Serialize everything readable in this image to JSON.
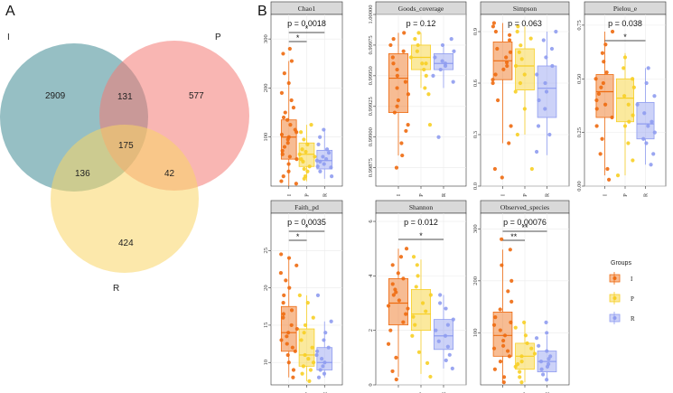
{
  "panel_a_letter": "A",
  "panel_b_letter": "B",
  "colors": {
    "I": "#ee6a10",
    "P": "#f7cf25",
    "R": "#8f9cf0",
    "venn_I": "#3f8b94",
    "venn_P": "#f47a74",
    "venn_R": "#f9d566",
    "strip_fill": "#d9d9d9",
    "panel_bg": "#ffffff",
    "grid": "#ebebeb"
  },
  "venn": {
    "sets": [
      {
        "name": "I",
        "label": "I"
      },
      {
        "name": "P",
        "label": "P"
      },
      {
        "name": "R",
        "label": "R"
      }
    ],
    "regions": {
      "I_only": "2909",
      "P_only": "577",
      "R_only": "424",
      "I_P": "131",
      "I_R": "136",
      "P_R": "42",
      "I_P_R": "175"
    }
  },
  "legend": {
    "title": "Groups",
    "items": [
      "I",
      "P",
      "R"
    ]
  },
  "chart_data": [
    {
      "type": "box",
      "title": "Chao1",
      "annotation": "p = 0.0018",
      "categories": [
        "I",
        "P",
        "R"
      ],
      "ylim": [
        0,
        350
      ],
      "yticks": [
        "100",
        "200",
        "300"
      ],
      "ytick_values": [
        100,
        200,
        300
      ],
      "boxes": [
        {
          "group": "I",
          "q1": 55,
          "median": 100,
          "q3": 135,
          "whisker_low": 0,
          "whisker_high": 255
        },
        {
          "group": "P",
          "q1": 40,
          "median": 65,
          "q3": 88,
          "whisker_low": 10,
          "whisker_high": 125
        },
        {
          "group": "R",
          "q1": 35,
          "median": 52,
          "q3": 73,
          "whisker_low": 15,
          "whisker_high": 115
        }
      ],
      "significance": [
        {
          "pair": [
            "I",
            "P"
          ],
          "label": "*"
        },
        {
          "pair": [
            "I",
            "R"
          ],
          "label": "*"
        }
      ],
      "points": {
        "I": [
          45,
          60,
          72,
          80,
          95,
          100,
          105,
          115,
          125,
          135,
          150,
          160,
          175,
          190,
          210,
          230,
          255,
          270,
          280,
          30,
          20,
          10,
          5,
          55,
          65,
          88,
          110,
          140
        ],
        "P": [
          20,
          30,
          40,
          50,
          55,
          60,
          70,
          75,
          85,
          95,
          110,
          125,
          15,
          35,
          65
        ],
        "R": [
          20,
          30,
          38,
          45,
          50,
          55,
          60,
          68,
          75,
          85,
          100,
          115,
          40,
          52
        ]
      }
    },
    {
      "type": "box",
      "title": "Goods_coverage",
      "annotation": "p = 0.12",
      "categories": [
        "I",
        "P",
        "R"
      ],
      "ylim": [
        0.9986,
        1.0
      ],
      "yticks": [
        "0.99875",
        "0.99900",
        "0.99925",
        "0.99950",
        "0.99975",
        "1.00000"
      ],
      "ytick_values": [
        0.99875,
        0.999,
        0.99925,
        0.9995,
        0.99975,
        1.0
      ],
      "boxes": [
        {
          "group": "I",
          "q1": 0.9992,
          "median": 0.99948,
          "q3": 0.99968,
          "whisker_low": 0.99885,
          "whisker_high": 0.99985
        },
        {
          "group": "P",
          "q1": 0.99955,
          "median": 0.99965,
          "q3": 0.99975,
          "whisker_low": 0.9994,
          "whisker_high": 0.99985
        },
        {
          "group": "R",
          "q1": 0.99955,
          "median": 0.9996,
          "q3": 0.99968,
          "whisker_low": 0.9994,
          "whisker_high": 0.99975
        }
      ],
      "significance": [],
      "points": {
        "I": [
          0.99875,
          0.99885,
          0.99895,
          0.9991,
          0.9992,
          0.99925,
          0.9993,
          0.9994,
          0.99945,
          0.9995,
          0.99955,
          0.9996,
          0.99965,
          0.9997,
          0.99975,
          0.9998,
          0.99985,
          0.99905,
          0.99935
        ],
        "P": [
          0.9991,
          0.99935,
          0.9995,
          0.99955,
          0.9996,
          0.99965,
          0.9997,
          0.99975,
          0.9998,
          0.99985,
          0.9994,
          0.9996
        ],
        "R": [
          0.999,
          0.99945,
          0.9995,
          0.99955,
          0.9996,
          0.99962,
          0.99965,
          0.9997,
          0.99975,
          0.9998,
          0.99958
        ]
      }
    },
    {
      "type": "box",
      "title": "Simpson",
      "annotation": "p = 0.063",
      "categories": [
        "I",
        "P",
        "R"
      ],
      "ylim": [
        0,
        1.0
      ],
      "yticks": [
        "0.0",
        "0.3",
        "0.6",
        "0.9"
      ],
      "ytick_values": [
        0.0,
        0.3,
        0.6,
        0.9
      ],
      "boxes": [
        {
          "group": "I",
          "q1": 0.62,
          "median": 0.73,
          "q3": 0.84,
          "whisker_low": 0.25,
          "whisker_high": 0.95
        },
        {
          "group": "P",
          "q1": 0.56,
          "median": 0.7,
          "q3": 0.8,
          "whisker_low": 0.3,
          "whisker_high": 0.93
        },
        {
          "group": "R",
          "q1": 0.4,
          "median": 0.57,
          "q3": 0.7,
          "whisker_low": 0.18,
          "whisker_high": 0.9
        }
      ],
      "significance": [],
      "points": {
        "I": [
          0.05,
          0.1,
          0.25,
          0.35,
          0.5,
          0.6,
          0.65,
          0.7,
          0.72,
          0.75,
          0.78,
          0.8,
          0.85,
          0.9,
          0.93,
          0.95,
          0.62,
          0.68,
          0.88
        ],
        "P": [
          0.1,
          0.3,
          0.45,
          0.55,
          0.6,
          0.65,
          0.7,
          0.74,
          0.78,
          0.82,
          0.86,
          0.9,
          0.93
        ],
        "R": [
          0.2,
          0.3,
          0.35,
          0.45,
          0.5,
          0.55,
          0.6,
          0.65,
          0.7,
          0.75,
          0.8,
          0.85,
          0.9
        ]
      }
    },
    {
      "type": "box",
      "title": "Pielou_e",
      "annotation": "p = 0.038",
      "categories": [
        "I",
        "P",
        "R"
      ],
      "ylim": [
        0,
        0.8
      ],
      "yticks": [
        "0.00",
        "0.25",
        "0.50",
        "0.75"
      ],
      "ytick_values": [
        0.0,
        0.25,
        0.5,
        0.75
      ],
      "boxes": [
        {
          "group": "I",
          "q1": 0.32,
          "median": 0.44,
          "q3": 0.52,
          "whisker_low": 0.05,
          "whisker_high": 0.72
        },
        {
          "group": "P",
          "q1": 0.3,
          "median": 0.41,
          "q3": 0.5,
          "whisker_low": 0.05,
          "whisker_high": 0.62
        },
        {
          "group": "R",
          "q1": 0.22,
          "median": 0.29,
          "q3": 0.39,
          "whisker_low": 0.1,
          "whisker_high": 0.55
        }
      ],
      "significance": [
        {
          "pair": [
            "I",
            "R"
          ],
          "label": "*"
        }
      ],
      "points": {
        "I": [
          0.03,
          0.08,
          0.15,
          0.22,
          0.28,
          0.32,
          0.36,
          0.4,
          0.43,
          0.46,
          0.5,
          0.53,
          0.58,
          0.62,
          0.66,
          0.72,
          0.38,
          0.48
        ],
        "P": [
          0.05,
          0.12,
          0.2,
          0.28,
          0.33,
          0.38,
          0.42,
          0.46,
          0.5,
          0.55,
          0.6,
          0.3
        ],
        "R": [
          0.1,
          0.15,
          0.2,
          0.25,
          0.28,
          0.3,
          0.34,
          0.38,
          0.42,
          0.48,
          0.55,
          0.22
        ]
      }
    },
    {
      "type": "box",
      "title": "Faith_pd",
      "annotation": "p = 0.0035",
      "categories": [
        "I",
        "P",
        "R"
      ],
      "ylim": [
        7,
        30
      ],
      "yticks": [
        "10",
        "15",
        "20",
        "25"
      ],
      "ytick_values": [
        10,
        15,
        20,
        25
      ],
      "boxes": [
        {
          "group": "I",
          "q1": 11.5,
          "median": 14,
          "q3": 17.5,
          "whisker_low": 8,
          "whisker_high": 24
        },
        {
          "group": "P",
          "q1": 9.5,
          "median": 11,
          "q3": 14.5,
          "whisker_low": 7.5,
          "whisker_high": 19
        },
        {
          "group": "R",
          "q1": 9,
          "median": 10,
          "q3": 12,
          "whisker_low": 8,
          "whisker_high": 15.5
        }
      ],
      "significance": [
        {
          "pair": [
            "I",
            "P"
          ],
          "label": "*"
        },
        {
          "pair": [
            "I",
            "R"
          ],
          "label": "*"
        }
      ],
      "points": {
        "I": [
          8,
          9,
          10,
          11,
          11.5,
          12,
          13,
          13.5,
          14,
          14.5,
          15,
          16,
          17,
          18,
          19,
          20,
          21,
          22,
          23,
          24,
          24.5,
          12.5,
          16.5
        ],
        "P": [
          7.5,
          8.5,
          9,
          9.5,
          10,
          10.5,
          11,
          12,
          13,
          14,
          15,
          16,
          18,
          19
        ],
        "R": [
          8,
          8.5,
          9,
          9.5,
          10,
          10.5,
          11,
          11.5,
          12,
          13,
          14,
          15.5,
          19
        ]
      }
    },
    {
      "type": "box",
      "title": "Shannon",
      "annotation": "p = 0.012",
      "categories": [
        "I",
        "P",
        "R"
      ],
      "ylim": [
        0,
        6.3
      ],
      "yticks": [
        "0",
        "2",
        "4",
        "6"
      ],
      "ytick_values": [
        0,
        2,
        4,
        6
      ],
      "boxes": [
        {
          "group": "I",
          "q1": 2.2,
          "median": 3.0,
          "q3": 3.9,
          "whisker_low": 0.3,
          "whisker_high": 5.0
        },
        {
          "group": "P",
          "q1": 2.0,
          "median": 2.6,
          "q3": 3.5,
          "whisker_low": 0.4,
          "whisker_high": 4.6
        },
        {
          "group": "R",
          "q1": 1.3,
          "median": 1.8,
          "q3": 2.4,
          "whisker_low": 0.6,
          "whisker_high": 3.3
        }
      ],
      "significance": [
        {
          "pair": [
            "I",
            "R"
          ],
          "label": "*"
        }
      ],
      "points": {
        "I": [
          0.2,
          0.5,
          1.0,
          1.5,
          2.0,
          2.3,
          2.6,
          2.9,
          3.1,
          3.3,
          3.5,
          3.7,
          3.9,
          4.1,
          4.4,
          4.7,
          5.0,
          2.8,
          3.4
        ],
        "P": [
          0.3,
          0.8,
          1.2,
          1.8,
          2.2,
          2.5,
          2.7,
          3.0,
          3.3,
          3.6,
          4.0,
          4.4,
          4.7
        ],
        "R": [
          0.6,
          0.9,
          1.1,
          1.4,
          1.6,
          1.8,
          2.0,
          2.2,
          2.4,
          2.8,
          3.0,
          3.3
        ]
      }
    },
    {
      "type": "box",
      "title": "Observed_species",
      "annotation": "p = 0.00076",
      "categories": [
        "I",
        "P",
        "R"
      ],
      "ylim": [
        0,
        330
      ],
      "yticks": [
        "100",
        "200",
        "300"
      ],
      "ytick_values": [
        100,
        200,
        300
      ],
      "boxes": [
        {
          "group": "I",
          "q1": 55,
          "median": 95,
          "q3": 140,
          "whisker_low": 5,
          "whisker_high": 260
        },
        {
          "group": "P",
          "q1": 30,
          "median": 55,
          "q3": 80,
          "whisker_low": 5,
          "whisker_high": 120
        },
        {
          "group": "R",
          "q1": 25,
          "median": 45,
          "q3": 65,
          "whisker_low": 10,
          "whisker_high": 95
        }
      ],
      "significance": [
        {
          "pair": [
            "I",
            "P"
          ],
          "label": "**"
        },
        {
          "pair": [
            "I",
            "R"
          ],
          "label": "**"
        }
      ],
      "points": {
        "I": [
          5,
          15,
          30,
          45,
          55,
          65,
          75,
          85,
          95,
          105,
          115,
          130,
          145,
          160,
          180,
          200,
          230,
          260,
          280,
          70,
          120
        ],
        "P": [
          5,
          15,
          25,
          35,
          45,
          55,
          60,
          70,
          80,
          95,
          110,
          120,
          40
        ],
        "R": [
          10,
          20,
          30,
          35,
          40,
          45,
          50,
          55,
          65,
          75,
          90,
          100,
          120
        ]
      }
    }
  ]
}
